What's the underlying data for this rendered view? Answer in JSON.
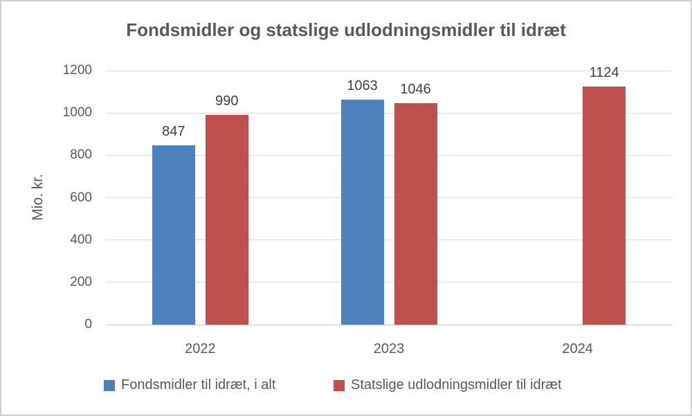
{
  "chart_data": {
    "type": "bar",
    "title": "Fondsmidler og statslige udlodningsmidler til idræt",
    "ylabel": "Mio. kr.",
    "xlabel": "",
    "categories": [
      "2022",
      "2023",
      "2024"
    ],
    "series": [
      {
        "name": "Fondsmidler til idræt, i alt",
        "color": "#4F81BD",
        "values": [
          847,
          1063,
          null
        ]
      },
      {
        "name": "Statslige udlodningsmidler til idræt",
        "color": "#C0504D",
        "values": [
          990,
          1046,
          1124
        ]
      }
    ],
    "ylim": [
      0,
      1200
    ],
    "yticks": [
      0,
      200,
      400,
      600,
      800,
      1000,
      1200
    ],
    "grid": true,
    "legend_position": "bottom",
    "data_labels": true
  },
  "colors": {
    "text": "#595959",
    "data_label": "#404040",
    "gridline": "#D9D9D9",
    "axis_line": "#C6C6C6",
    "frame_border": "#D0CECE",
    "background": "#FFFFFF",
    "series_blue": "#4F81BD",
    "series_red": "#C0504D"
  }
}
